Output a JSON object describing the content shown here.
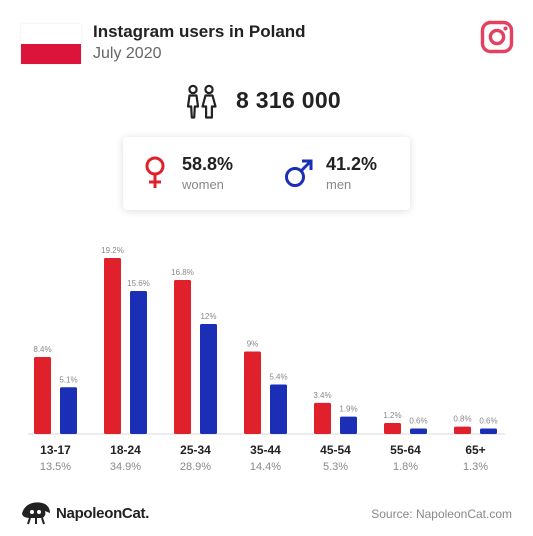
{
  "header": {
    "title": "Instagram users in Poland",
    "subtitle": "July 2020"
  },
  "summary": {
    "total_users": "8 316 000",
    "women": {
      "percent": "58.8%",
      "label": "women"
    },
    "men": {
      "percent": "41.2%",
      "label": "men"
    }
  },
  "colors": {
    "women": "#e0212b",
    "men": "#1a2fb5",
    "flag_red": "#dc143c",
    "instagram": "#e4405f"
  },
  "icons": {
    "flag": "poland-flag-icon",
    "instagram": "instagram-icon",
    "people": "people-icon",
    "female": "female-symbol-icon",
    "male": "male-symbol-icon",
    "brand": "napoleoncat-logo-icon"
  },
  "chart_data": {
    "type": "bar",
    "categories": [
      "13-17",
      "18-24",
      "25-34",
      "35-44",
      "45-54",
      "55-64",
      "65+"
    ],
    "category_share": [
      "13.5%",
      "34.9%",
      "28.9%",
      "14.4%",
      "5.3%",
      "1.8%",
      "1.3%"
    ],
    "series": [
      {
        "name": "women",
        "values": [
          8.4,
          19.2,
          16.8,
          9,
          3.4,
          1.2,
          0.8
        ],
        "labels": [
          "8.4%",
          "19.2%",
          "16.8%",
          "9%",
          "3.4%",
          "1.2%",
          "0.8%"
        ]
      },
      {
        "name": "men",
        "values": [
          5.1,
          15.6,
          12,
          5.4,
          1.9,
          0.6,
          0.6
        ],
        "labels": [
          "5.1%",
          "15.6%",
          "12%",
          "5.4%",
          "1.9%",
          "0.6%",
          "0.6%"
        ]
      }
    ],
    "ylim": [
      0,
      19.2
    ],
    "grid": false
  },
  "footer": {
    "brand": "NapoleonCat.",
    "source": "Source: NapoleonCat.com"
  }
}
